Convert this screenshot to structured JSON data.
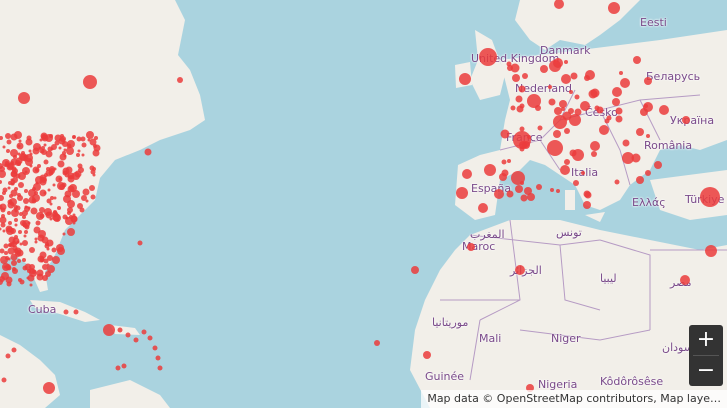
{
  "map": {
    "country_labels": [
      {
        "id": "uk",
        "text": "United Kingdom"
      },
      {
        "id": "dk",
        "text": "Danmark"
      },
      {
        "id": "ee",
        "text": "Eesti"
      },
      {
        "id": "by",
        "text": "Беларусь"
      },
      {
        "id": "nl",
        "text": "Nederland"
      },
      {
        "id": "cz",
        "text": "Česko"
      },
      {
        "id": "ua",
        "text": "Україна"
      },
      {
        "id": "fr",
        "text": "France"
      },
      {
        "id": "ro",
        "text": "România"
      },
      {
        "id": "it",
        "text": "Italia"
      },
      {
        "id": "es",
        "text": "España"
      },
      {
        "id": "gr",
        "text": "Ελλάς"
      },
      {
        "id": "tr",
        "text": "Türkiye"
      },
      {
        "id": "ma_ar",
        "text": "المغرب"
      },
      {
        "id": "ma",
        "text": "Maroc"
      },
      {
        "id": "tn",
        "text": "تونس"
      },
      {
        "id": "dz",
        "text": "الجزائر"
      },
      {
        "id": "ly",
        "text": "ليبيا"
      },
      {
        "id": "eg",
        "text": "مصر"
      },
      {
        "id": "mr",
        "text": "موريتانيا"
      },
      {
        "id": "ml",
        "text": "Mali"
      },
      {
        "id": "ne",
        "text": "Niger"
      },
      {
        "id": "sd",
        "text": "السودان"
      },
      {
        "id": "cu",
        "text": "Cuba"
      },
      {
        "id": "gn",
        "text": "Guinée"
      },
      {
        "id": "ng",
        "text": "Nigeria"
      },
      {
        "id": "ci",
        "text": "Kôdôrôsêse"
      }
    ]
  },
  "zoom": {
    "in_label": "+",
    "out_label": "−"
  },
  "attribution": {
    "text": "Map data © OpenStreetMap contributors, Map laye…"
  },
  "colors": {
    "water": "#aad3df",
    "land": "#f2efe9",
    "marker": "#eb3c3c",
    "border": "#b69bc4"
  }
}
